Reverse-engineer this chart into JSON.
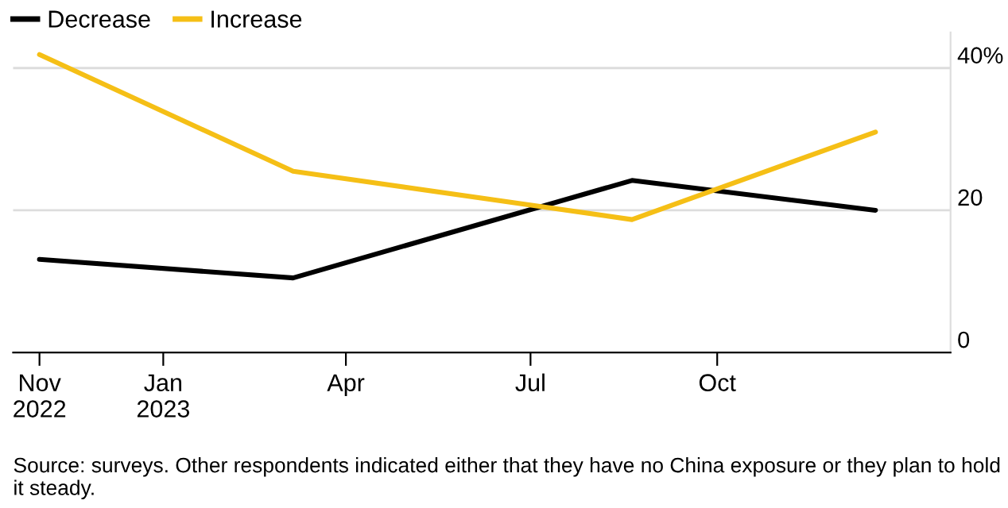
{
  "chart_data": {
    "type": "line",
    "x": [
      "2022-11-01",
      "2023-03-06",
      "2023-08-20",
      "2023-12-18"
    ],
    "series": [
      {
        "name": "Decrease",
        "color": "#000000",
        "values": [
          13.1,
          10.5,
          24.2,
          20.0
        ]
      },
      {
        "name": "Increase",
        "color": "#f5bf16",
        "values": [
          41.9,
          25.5,
          18.7,
          31.0
        ]
      }
    ],
    "xlim": [
      "2022-10-19",
      "2024-01-24"
    ],
    "xticks": [
      {
        "value": "2022-11-01",
        "label": "Nov\n2022"
      },
      {
        "value": "2023-01-01",
        "label": "Jan\n2023"
      },
      {
        "value": "2023-04-01",
        "label": "Apr"
      },
      {
        "value": "2023-07-01",
        "label": "Jul"
      },
      {
        "value": "2023-10-01",
        "label": "Oct"
      }
    ],
    "ylim": [
      0,
      45
    ],
    "yticks": [
      0,
      20,
      {
        "value": 40,
        "label": "40%"
      }
    ],
    "grid": "y",
    "legend": "top left",
    "marker": "none",
    "line_style": "solid",
    "annotations": [
      "Source: surveys. Other respondents indicated either that they have no China exposure or they plan to hold it steady."
    ]
  }
}
